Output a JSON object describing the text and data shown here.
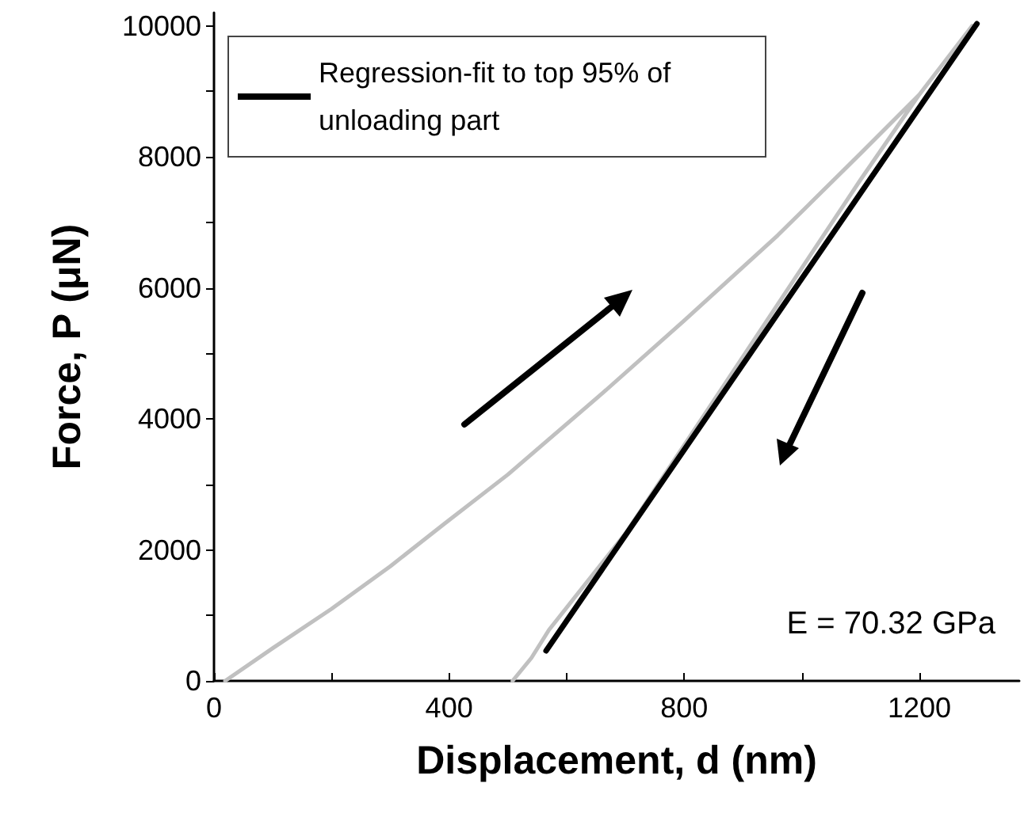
{
  "chart_data": {
    "type": "line",
    "xlabel": "Displacement, d (nm)",
    "ylabel": "Force, P (μN)",
    "xlim": [
      0,
      1370
    ],
    "ylim": [
      0,
      10200
    ],
    "xticks": [
      0,
      {
        "value": 200,
        "label": null
      },
      400,
      {
        "value": 600,
        "label": null
      },
      800,
      {
        "value": 1000,
        "label": null
      },
      1200
    ],
    "yticks": [
      0,
      {
        "value": 1000,
        "label": null
      },
      2000,
      {
        "value": 3000,
        "label": null
      },
      4000,
      {
        "value": 5000,
        "label": null
      },
      6000,
      {
        "value": 7000,
        "label": null
      },
      8000,
      {
        "value": 9000,
        "label": null
      },
      10000
    ],
    "series": [
      {
        "color": "#c0c0c0",
        "x": [
          19,
          100,
          200,
          300,
          392,
          500,
          662,
          800,
          959,
          1100,
          1200,
          1290,
          1200,
          1100,
          900,
          700,
          570,
          540,
          508
        ],
        "values": [
          0,
          500,
          1100,
          1750,
          2400,
          3150,
          4400,
          5500,
          6800,
          8050,
          8950,
          10000,
          8950,
          7650,
          4950,
          2250,
          780,
          350,
          0
        ]
      },
      {
        "name": "Regression-fit to top 95% of unloading part",
        "color": "#000000",
        "x": [
          565,
          1298
        ],
        "values": [
          460,
          10030
        ]
      }
    ],
    "legend": "top left",
    "grid": false,
    "marker": "none",
    "line_style": "solid",
    "annotations": [
      "E = 70.32 GPa"
    ]
  }
}
